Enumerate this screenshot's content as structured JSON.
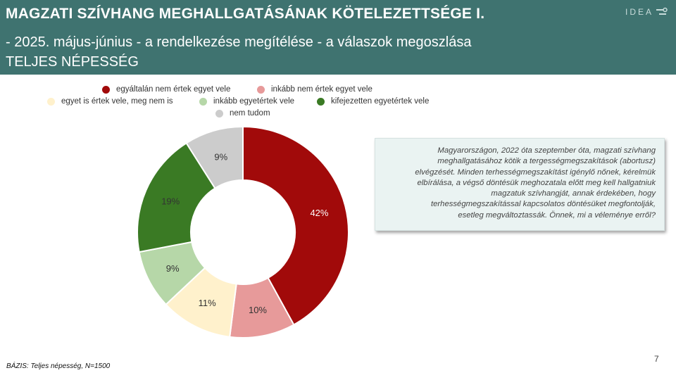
{
  "header": {
    "title": "MAGZATI SZÍVHANG MEGHALLGATÁSÁNAK KÖTELEZETTSÉGE I.",
    "subtitle": "- 2025. május-június - a rendelkezése megítélése - a válaszok megoszlása",
    "population": "TELJES NÉPESSÉG",
    "logo": "IDEA"
  },
  "chart_data": {
    "type": "pie",
    "variant": "donut",
    "categories": [
      "egyáltalán nem értek egyet vele",
      "inkább nem értek egyet vele",
      "egyet is értek vele, meg nem is",
      "inkább egyetértek vele",
      "kifejezetten egyetértek vele",
      "nem tudom"
    ],
    "values": [
      42,
      10,
      11,
      9,
      19,
      9
    ],
    "labels": [
      "42%",
      "10%",
      "11%",
      "9%",
      "19%",
      "9%"
    ],
    "colors": [
      "#a10a0a",
      "#e79a9a",
      "#fff1cc",
      "#b6d7a8",
      "#3a7a24",
      "#cccccc"
    ],
    "label_colors": [
      "#ffffff",
      "#333333",
      "#333333",
      "#333333",
      "#333333",
      "#333333"
    ],
    "title": "",
    "legend_position": "top"
  },
  "legend": {
    "items": [
      {
        "label": "egyáltalán nem értek egyet vele",
        "color": "#a10a0a"
      },
      {
        "label": "inkább nem értek egyet vele",
        "color": "#e79a9a"
      },
      {
        "label": "egyet is értek vele, meg nem is",
        "color": "#fff1cc"
      },
      {
        "label": "inkább egyetértek vele",
        "color": "#b6d7a8"
      },
      {
        "label": "kifejezetten egyetértek vele",
        "color": "#3a7a24"
      },
      {
        "label": "nem tudom",
        "color": "#cccccc"
      }
    ]
  },
  "question": {
    "lines": [
      "Magyarországon, 2022 óta szeptember óta, magzati szívhang",
      "meghallgatásához kötik a tergességmegszakítások (abortusz)",
      "elvégzését.  Minden terhességmegszakítást igénylő nőnek, kérelmük",
      "elbírálása, a végső döntésük meghozatala előtt meg kell hallgatniuk",
      "magzatuk szívhangját, annak érdekében, hogy",
      "terhességmegszakítással kapcsolatos döntésüket megfontolják,",
      "esetleg megváltoztassák. Önnek, mi a véleménye erről?"
    ]
  },
  "footer": {
    "base": "BÁZIS: Teljes népesség, N=1500",
    "page_number": "7"
  }
}
